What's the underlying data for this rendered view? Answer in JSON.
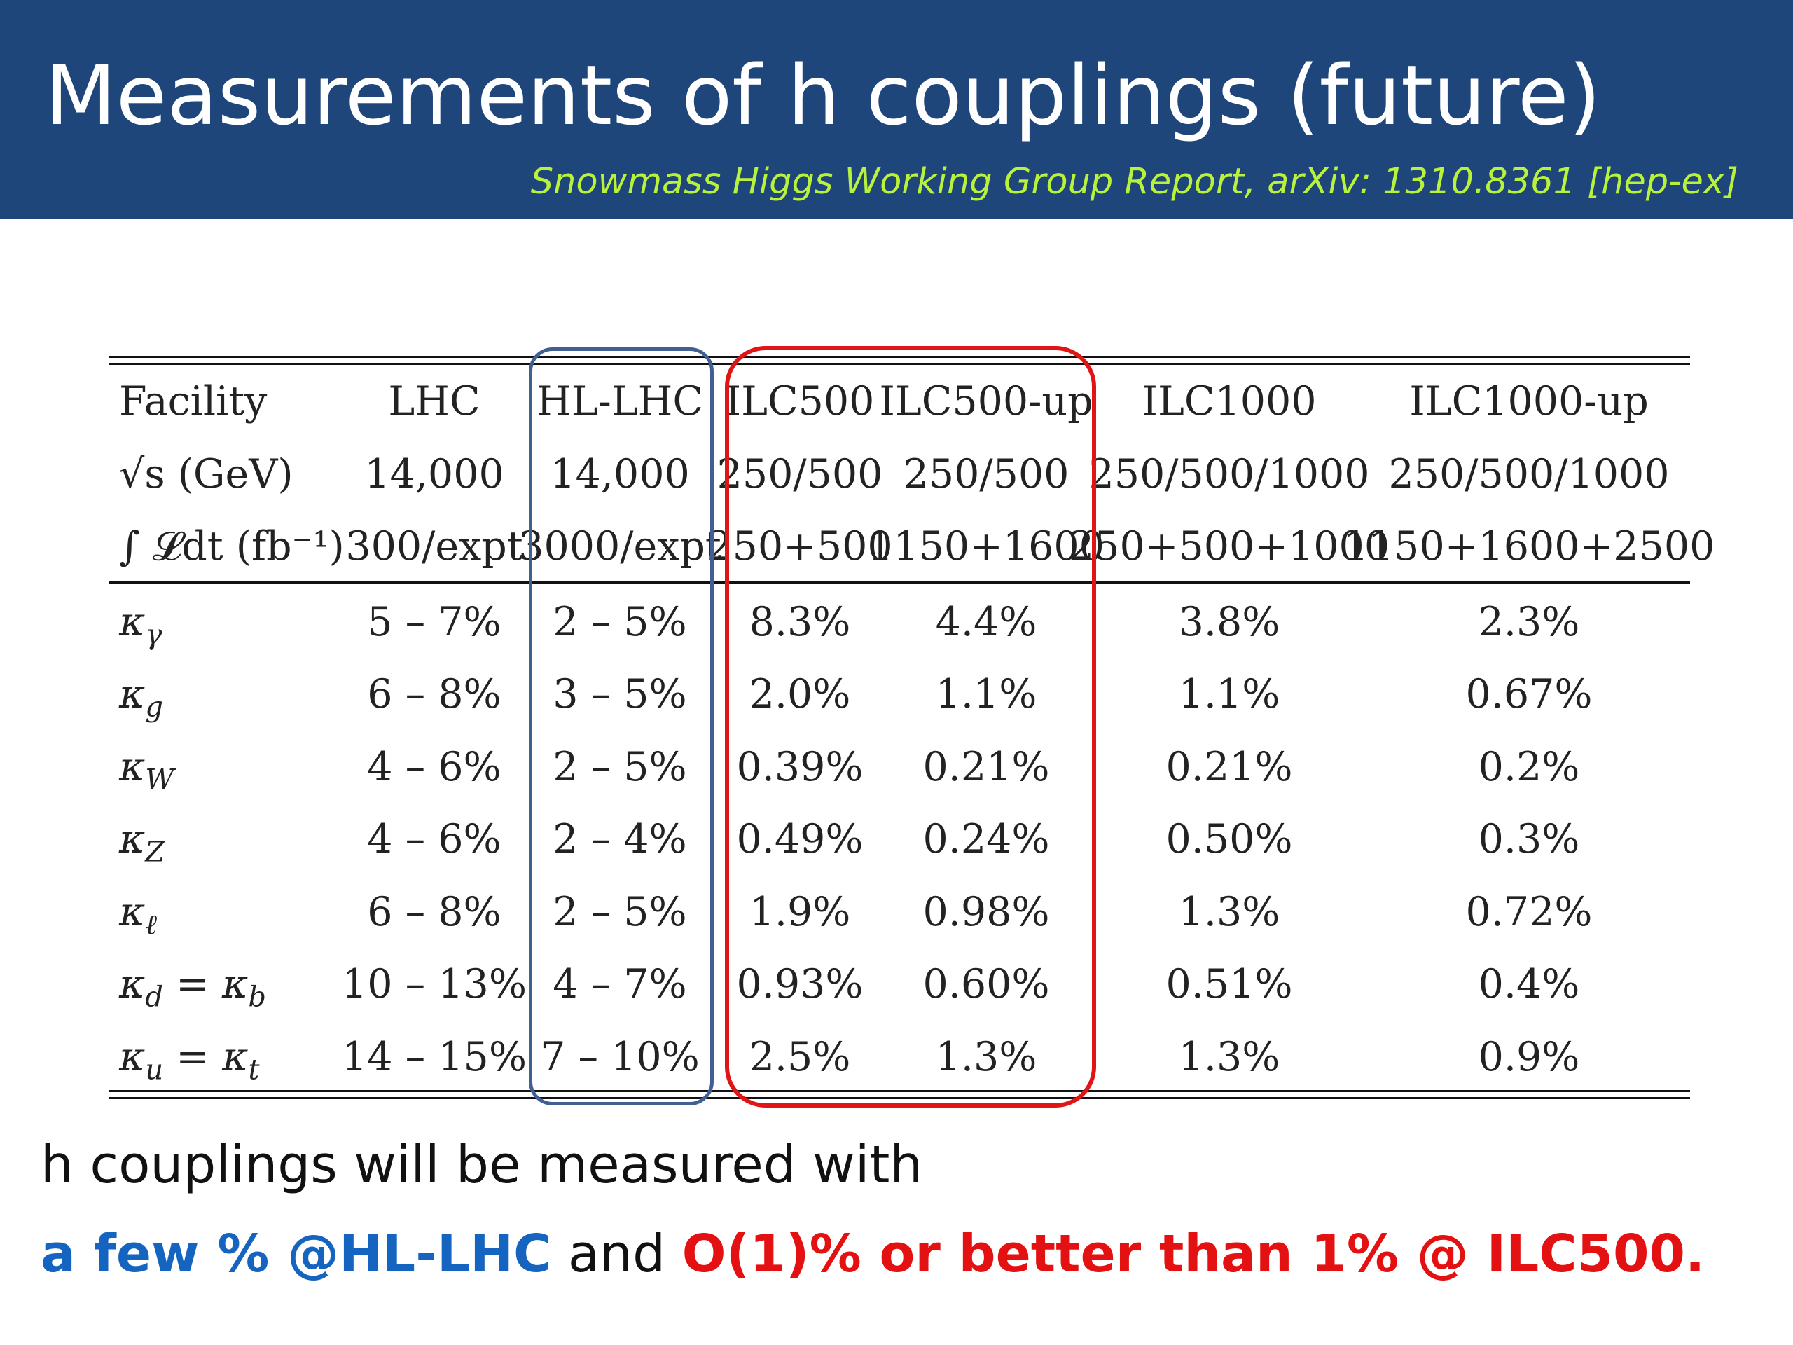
{
  "slide": {
    "title": "Measurements of h couplings (future)",
    "reference": "Snowmass Higgs Working Group Report, arXiv: 1310.8361 [hep-ex]"
  },
  "colors": {
    "header_bg": "#1f467a",
    "reference_text": "#b9f23a",
    "hl_highlight": "#3f6090",
    "ilc_highlight": "#e01515",
    "summary_blue": "#1565c0",
    "summary_red": "#e31111"
  },
  "table": {
    "header_rows": [
      {
        "label": "Facility",
        "cells": [
          "LHC",
          "HL-LHC",
          "ILC500",
          "ILC500-up",
          "ILC1000",
          "ILC1000-up"
        ]
      },
      {
        "label": "√s (GeV)",
        "cells": [
          "14,000",
          "14,000",
          "250/500",
          "250/500",
          "250/500/1000",
          "250/500/1000"
        ]
      },
      {
        "label": "∫ 𝓛dt (fb⁻¹)",
        "cells": [
          "300/expt",
          "3000/expt",
          "250+500",
          "1150+1600",
          "250+500+1000",
          "1150+1600+2500"
        ]
      }
    ],
    "rows": [
      {
        "kappa": "κ",
        "sub": "γ",
        "sub2": "",
        "cells": [
          "5 – 7%",
          "2 – 5%",
          "8.3%",
          "4.4%",
          "3.8%",
          "2.3%"
        ]
      },
      {
        "kappa": "κ",
        "sub": "g",
        "sub2": "",
        "cells": [
          "6 – 8%",
          "3 – 5%",
          "2.0%",
          "1.1%",
          "1.1%",
          "0.67%"
        ]
      },
      {
        "kappa": "κ",
        "sub": "W",
        "sub2": "",
        "cells": [
          "4 – 6%",
          "2 – 5%",
          "0.39%",
          "0.21%",
          "0.21%",
          "0.2%"
        ]
      },
      {
        "kappa": "κ",
        "sub": "Z",
        "sub2": "",
        "cells": [
          "4 – 6%",
          "2 – 4%",
          "0.49%",
          "0.24%",
          "0.50%",
          "0.3%"
        ]
      },
      {
        "kappa": "κ",
        "sub": "ℓ",
        "sub2": "",
        "cells": [
          "6 – 8%",
          "2 – 5%",
          "1.9%",
          "0.98%",
          "1.3%",
          "0.72%"
        ]
      },
      {
        "kappa": "κ",
        "sub": "d",
        "sub2": "b",
        "cells": [
          "10 – 13%",
          "4 – 7%",
          "0.93%",
          "0.60%",
          "0.51%",
          "0.4%"
        ]
      },
      {
        "kappa": "κ",
        "sub": "u",
        "sub2": "t",
        "cells": [
          "14 – 15%",
          "7 – 10%",
          "2.5%",
          "1.3%",
          "1.3%",
          "0.9%"
        ]
      }
    ]
  },
  "summary": {
    "line1": "h couplings will be measured with",
    "hl_part": "a few % @HL-LHC",
    "and_part": " and ",
    "ilc_part": "O(1)% or better than 1% @ ILC500."
  }
}
